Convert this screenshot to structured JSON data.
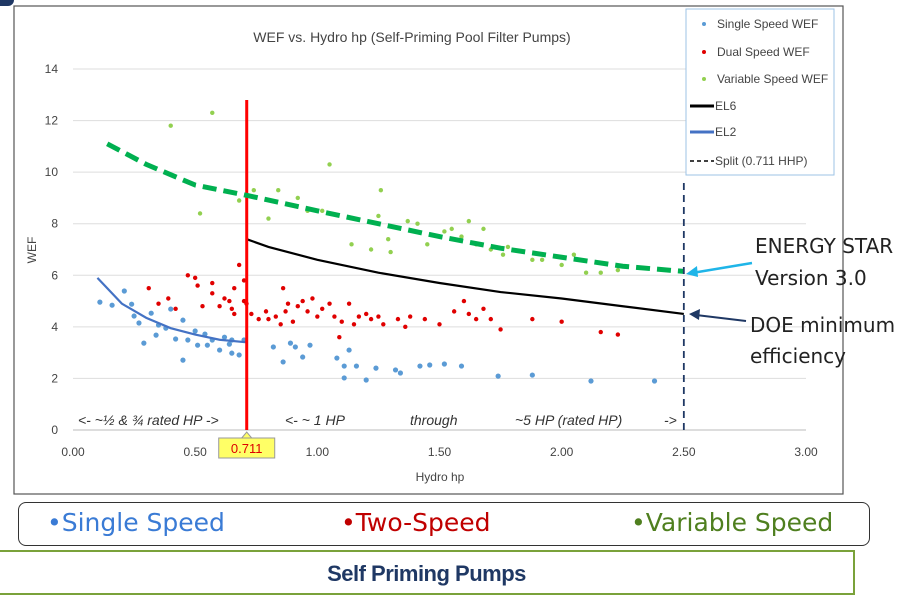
{
  "chart_data": {
    "type": "scatter",
    "title": "WEF vs. Hydro hp (Self-Priming Pool Filter Pumps)",
    "xlabel": "Hydro hp",
    "ylabel": "WEF",
    "xlim": [
      0,
      3
    ],
    "ylim": [
      0,
      14
    ],
    "xticks": [
      "0.00",
      "0.50",
      "1.00",
      "1.50",
      "2.00",
      "2.50",
      "3.00"
    ],
    "yticks": [
      "0",
      "2",
      "4",
      "6",
      "8",
      "10",
      "12",
      "14"
    ],
    "grid": "horizontal",
    "legend_position": "top-right",
    "split_marker_label": "0.711",
    "series": [
      {
        "name": "Single Speed WEF",
        "kind": "scatter",
        "color": "#5b9bd5",
        "points": [
          [
            0.11,
            4.96
          ],
          [
            0.16,
            4.84
          ],
          [
            0.21,
            5.39
          ],
          [
            0.24,
            4.88
          ],
          [
            0.25,
            4.42
          ],
          [
            0.27,
            4.15
          ],
          [
            0.29,
            3.37
          ],
          [
            0.32,
            4.53
          ],
          [
            0.34,
            3.68
          ],
          [
            0.35,
            4.07
          ],
          [
            0.38,
            3.95
          ],
          [
            0.4,
            4.69
          ],
          [
            0.42,
            3.53
          ],
          [
            0.45,
            4.26
          ],
          [
            0.45,
            2.71
          ],
          [
            0.47,
            3.49
          ],
          [
            0.5,
            3.84
          ],
          [
            0.51,
            3.29
          ],
          [
            0.54,
            3.72
          ],
          [
            0.55,
            3.29
          ],
          [
            0.57,
            3.49
          ],
          [
            0.6,
            3.1
          ],
          [
            0.62,
            3.6
          ],
          [
            0.64,
            3.33
          ],
          [
            0.65,
            2.98
          ],
          [
            0.65,
            3.49
          ],
          [
            0.68,
            2.91
          ],
          [
            0.7,
            3.49
          ],
          [
            0.82,
            3.22
          ],
          [
            0.86,
            2.64
          ],
          [
            0.89,
            3.37
          ],
          [
            0.91,
            3.22
          ],
          [
            0.94,
            2.83
          ],
          [
            0.97,
            3.29
          ],
          [
            1.08,
            2.79
          ],
          [
            1.11,
            2.48
          ],
          [
            1.11,
            2.02
          ],
          [
            1.13,
            3.1
          ],
          [
            1.16,
            2.48
          ],
          [
            1.2,
            1.94
          ],
          [
            1.24,
            2.4
          ],
          [
            1.32,
            2.33
          ],
          [
            1.34,
            2.21
          ],
          [
            1.42,
            2.48
          ],
          [
            1.46,
            2.52
          ],
          [
            1.52,
            2.56
          ],
          [
            1.59,
            2.48
          ],
          [
            1.74,
            2.09
          ],
          [
            1.88,
            2.13
          ],
          [
            2.12,
            1.9
          ],
          [
            2.38,
            1.9
          ]
        ]
      },
      {
        "name": "Dual Speed WEF",
        "kind": "scatter",
        "color": "#e00000",
        "points": [
          [
            0.31,
            5.5
          ],
          [
            0.35,
            4.9
          ],
          [
            0.39,
            5.1
          ],
          [
            0.42,
            4.7
          ],
          [
            0.47,
            6.0
          ],
          [
            0.5,
            5.9
          ],
          [
            0.51,
            5.6
          ],
          [
            0.53,
            4.8
          ],
          [
            0.57,
            5.7
          ],
          [
            0.57,
            5.3
          ],
          [
            0.6,
            4.8
          ],
          [
            0.62,
            5.1
          ],
          [
            0.64,
            5.0
          ],
          [
            0.65,
            4.7
          ],
          [
            0.66,
            5.5
          ],
          [
            0.66,
            4.5
          ],
          [
            0.68,
            6.4
          ],
          [
            0.7,
            5.8
          ],
          [
            0.7,
            5.0
          ],
          [
            0.71,
            4.9
          ],
          [
            0.73,
            4.5
          ],
          [
            0.76,
            4.3
          ],
          [
            0.79,
            4.6
          ],
          [
            0.8,
            4.3
          ],
          [
            0.83,
            4.4
          ],
          [
            0.85,
            4.1
          ],
          [
            0.86,
            5.5
          ],
          [
            0.87,
            4.6
          ],
          [
            0.88,
            4.9
          ],
          [
            0.9,
            4.2
          ],
          [
            0.92,
            4.8
          ],
          [
            0.94,
            5.0
          ],
          [
            0.96,
            4.6
          ],
          [
            0.98,
            5.1
          ],
          [
            1.0,
            4.4
          ],
          [
            1.02,
            4.7
          ],
          [
            1.05,
            4.9
          ],
          [
            1.07,
            4.4
          ],
          [
            1.09,
            3.6
          ],
          [
            1.1,
            4.2
          ],
          [
            1.13,
            4.9
          ],
          [
            1.15,
            4.1
          ],
          [
            1.17,
            4.4
          ],
          [
            1.2,
            4.5
          ],
          [
            1.22,
            4.3
          ],
          [
            1.25,
            4.4
          ],
          [
            1.27,
            4.1
          ],
          [
            1.33,
            4.3
          ],
          [
            1.36,
            4.0
          ],
          [
            1.38,
            4.4
          ],
          [
            1.44,
            4.3
          ],
          [
            1.5,
            4.1
          ],
          [
            1.56,
            4.6
          ],
          [
            1.6,
            5.0
          ],
          [
            1.62,
            4.5
          ],
          [
            1.65,
            4.3
          ],
          [
            1.68,
            4.7
          ],
          [
            1.71,
            4.3
          ],
          [
            1.75,
            3.9
          ],
          [
            1.88,
            4.3
          ],
          [
            2.0,
            4.2
          ],
          [
            2.16,
            3.8
          ],
          [
            2.23,
            3.7
          ]
        ]
      },
      {
        "name": "Variable Speed WEF",
        "kind": "scatter",
        "color": "#92d050",
        "points": [
          [
            0.4,
            11.8
          ],
          [
            0.57,
            12.3
          ],
          [
            0.52,
            8.4
          ],
          [
            0.68,
            8.9
          ],
          [
            0.74,
            9.3
          ],
          [
            0.84,
            9.3
          ],
          [
            0.8,
            8.2
          ],
          [
            0.92,
            9.0
          ],
          [
            0.96,
            8.5
          ],
          [
            1.05,
            10.3
          ],
          [
            1.02,
            8.5
          ],
          [
            1.14,
            7.2
          ],
          [
            1.25,
            8.3
          ],
          [
            1.26,
            9.3
          ],
          [
            1.22,
            7.0
          ],
          [
            1.29,
            7.4
          ],
          [
            1.37,
            8.1
          ],
          [
            1.3,
            6.9
          ],
          [
            1.41,
            8.0
          ],
          [
            1.45,
            7.2
          ],
          [
            1.52,
            7.7
          ],
          [
            1.55,
            7.8
          ],
          [
            1.59,
            7.5
          ],
          [
            1.62,
            8.1
          ],
          [
            1.65,
            7.2
          ],
          [
            1.68,
            7.8
          ],
          [
            1.71,
            7.0
          ],
          [
            1.76,
            6.8
          ],
          [
            1.78,
            7.1
          ],
          [
            1.88,
            6.6
          ],
          [
            1.92,
            6.6
          ],
          [
            2.0,
            6.4
          ],
          [
            2.05,
            6.8
          ],
          [
            2.1,
            6.1
          ],
          [
            2.16,
            6.1
          ],
          [
            2.23,
            6.2
          ]
        ]
      },
      {
        "name": "EL6",
        "kind": "line",
        "color": "#000000",
        "points": [
          [
            0.711,
            7.4
          ],
          [
            0.8,
            7.1
          ],
          [
            1.0,
            6.6
          ],
          [
            1.25,
            6.1
          ],
          [
            1.5,
            5.7
          ],
          [
            1.75,
            5.35
          ],
          [
            2.0,
            5.1
          ],
          [
            2.25,
            4.8
          ],
          [
            2.5,
            4.5
          ]
        ]
      },
      {
        "name": "EL2",
        "kind": "line",
        "color": "#4472c4",
        "points": [
          [
            0.1,
            5.9
          ],
          [
            0.2,
            4.9
          ],
          [
            0.3,
            4.35
          ],
          [
            0.4,
            3.95
          ],
          [
            0.5,
            3.7
          ],
          [
            0.6,
            3.5
          ],
          [
            0.711,
            3.4
          ]
        ]
      },
      {
        "name": "Split (0.711 HHP)",
        "kind": "vline",
        "color": "#ff0000",
        "points": [
          [
            0.711,
            0
          ],
          [
            0.711,
            12.8
          ]
        ]
      },
      {
        "kind": "dashed-line",
        "color": "#00b050",
        "points": [
          [
            0.14,
            11.1
          ],
          [
            0.3,
            10.3
          ],
          [
            0.5,
            9.5
          ],
          [
            0.711,
            9.1
          ],
          [
            1.0,
            8.5
          ],
          [
            1.25,
            8.0
          ],
          [
            1.5,
            7.5
          ],
          [
            1.75,
            7.05
          ],
          [
            2.0,
            6.7
          ],
          [
            2.25,
            6.35
          ],
          [
            2.5,
            6.15
          ]
        ]
      },
      {
        "kind": "dashed-vline",
        "color": "#1f3864",
        "points": [
          [
            2.5,
            0
          ],
          [
            2.5,
            9.6
          ]
        ]
      }
    ],
    "annotations": {
      "left_range": "<- ~½ & ¾ rated HP ->",
      "right_range_1": "<-   ~ 1 HP",
      "right_range_2": "through",
      "right_range_3": "~5 HP  (rated HP)",
      "right_range_4": "->"
    }
  },
  "callouts": {
    "energy_star_line1": "ENERGY STAR",
    "energy_star_line2": "Version 3.0",
    "doe_line1": "DOE minimum",
    "doe_line2": "efficiency"
  },
  "category_legend": [
    {
      "label": "•Single Speed",
      "color": "#3a7bd5"
    },
    {
      "label": "•Two-Speed",
      "color": "#c00000"
    },
    {
      "label": "•Variable Speed",
      "color": "#4f7f1f"
    }
  ],
  "footer": {
    "title": "Self Priming Pumps"
  }
}
